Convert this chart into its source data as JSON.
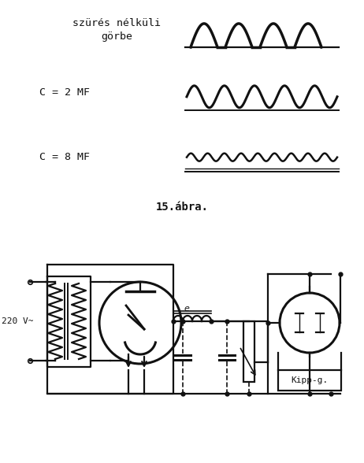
{
  "bg_color": "#ffffff",
  "title_top": "szürés nélküli\ngörbe",
  "label_c2": "C = 2 MF",
  "label_c8": "C = 8 MF",
  "caption_top": "15.ábra.",
  "text_220": "220 V~",
  "text_kipp": "Kipp-g.",
  "text_e": "e",
  "line_color": "#111111"
}
